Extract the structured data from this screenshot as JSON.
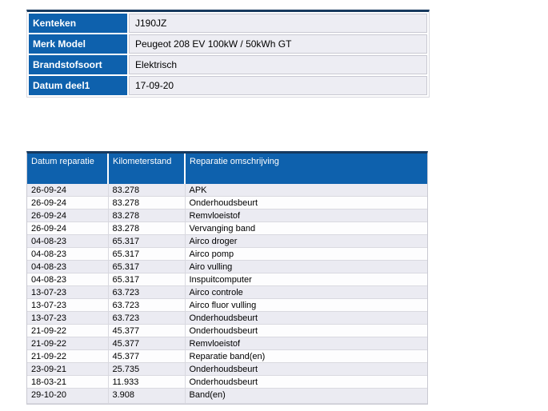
{
  "colors": {
    "header_blue": "#0e61ad",
    "dark_top_border": "#17395e",
    "value_cell_bg": "#ededf3",
    "row_alt_bg": "#ebebf2"
  },
  "vehicle_info": {
    "rows": [
      {
        "label": "Kenteken",
        "value": "J190JZ"
      },
      {
        "label": "Merk Model",
        "value": "Peugeot 208 EV 100kW / 50kWh GT"
      },
      {
        "label": "Brandstofsoort",
        "value": "Elektrisch"
      },
      {
        "label": "Datum deel1",
        "value": "17-09-20"
      }
    ]
  },
  "repairs": {
    "columns": [
      "Datum reparatie",
      "Kilometerstand",
      "Reparatie omschrijving"
    ],
    "rows": [
      [
        "26-09-24",
        "83.278",
        "APK"
      ],
      [
        "26-09-24",
        "83.278",
        "Onderhoudsbeurt"
      ],
      [
        "26-09-24",
        "83.278",
        "Remvloeistof"
      ],
      [
        "26-09-24",
        "83.278",
        "Vervanging band"
      ],
      [
        "04-08-23",
        "65.317",
        "Airco droger"
      ],
      [
        "04-08-23",
        "65.317",
        "Airco pomp"
      ],
      [
        "04-08-23",
        "65.317",
        "Airo vulling"
      ],
      [
        "04-08-23",
        "65.317",
        "Inspuitcomputer"
      ],
      [
        "13-07-23",
        "63.723",
        "Airco controle"
      ],
      [
        "13-07-23",
        "63.723",
        "Airco fluor vulling"
      ],
      [
        "13-07-23",
        "63.723",
        "Onderhoudsbeurt"
      ],
      [
        "21-09-22",
        "45.377",
        "Onderhoudsbeurt"
      ],
      [
        "21-09-22",
        "45.377",
        "Remvloeistof"
      ],
      [
        "21-09-22",
        "45.377",
        "Reparatie band(en)"
      ],
      [
        "23-09-21",
        "25.735",
        "Onderhoudsbeurt"
      ],
      [
        "18-03-21",
        "11.933",
        "Onderhoudsbeurt"
      ],
      [
        "29-10-20",
        "3.908",
        "Band(en)"
      ]
    ]
  }
}
